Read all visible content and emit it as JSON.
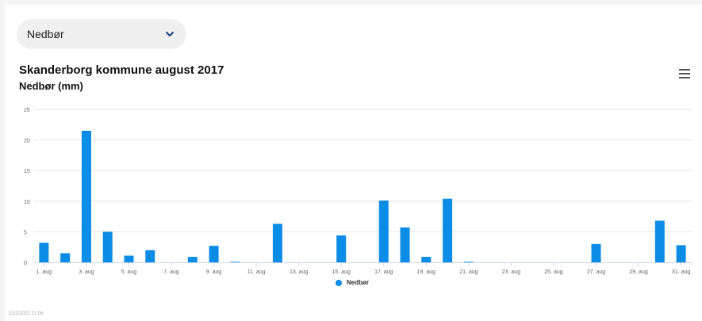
{
  "selector": {
    "value": "Nedbør",
    "icon": "chevron-down-icon"
  },
  "menu_icon": "hamburger-menu-icon",
  "timestamp": "22/2/2022 21:08",
  "colors": {
    "bar": "#0b8ce6",
    "grid": "#e6e6e6",
    "chevron": "#1a3a7a"
  },
  "chart_data": {
    "type": "bar",
    "title": "Skanderborg kommune august 2017",
    "subtitle": "Nedbør (mm)",
    "xlabel": "",
    "ylabel": "",
    "ylim": [
      0,
      25
    ],
    "yticks": [
      0,
      5,
      10,
      15,
      20,
      25
    ],
    "grid": true,
    "legend_position": "bottom",
    "categories": [
      "1. aug",
      "2. aug",
      "3. aug",
      "4. aug",
      "5. aug",
      "6. aug",
      "7. aug",
      "8. aug",
      "9. aug",
      "10. aug",
      "11. aug",
      "12. aug",
      "13. aug",
      "14. aug",
      "15. aug",
      "16. aug",
      "17. aug",
      "18. aug",
      "19. aug",
      "20. aug",
      "21. aug",
      "22. aug",
      "23. aug",
      "24. aug",
      "25. aug",
      "26. aug",
      "27. aug",
      "28. aug",
      "29. aug",
      "30. aug",
      "31. aug"
    ],
    "tick_labels": [
      "1. aug",
      "3. aug",
      "5. aug",
      "7. aug",
      "9. aug",
      "11. aug",
      "13. aug",
      "15. aug",
      "17. aug",
      "19. aug",
      "21. aug",
      "23. aug",
      "25. aug",
      "27. aug",
      "29. aug",
      "31. aug"
    ],
    "series": [
      {
        "name": "Nedbør",
        "values": [
          3.2,
          1.5,
          21.5,
          5.0,
          1.1,
          2.0,
          0,
          0.9,
          2.7,
          0.1,
          0,
          6.3,
          0,
          0,
          4.4,
          0,
          10.1,
          5.7,
          0.9,
          10.4,
          0.1,
          0,
          0,
          0,
          0,
          0,
          3.0,
          0,
          0,
          6.8,
          2.8
        ]
      }
    ]
  }
}
